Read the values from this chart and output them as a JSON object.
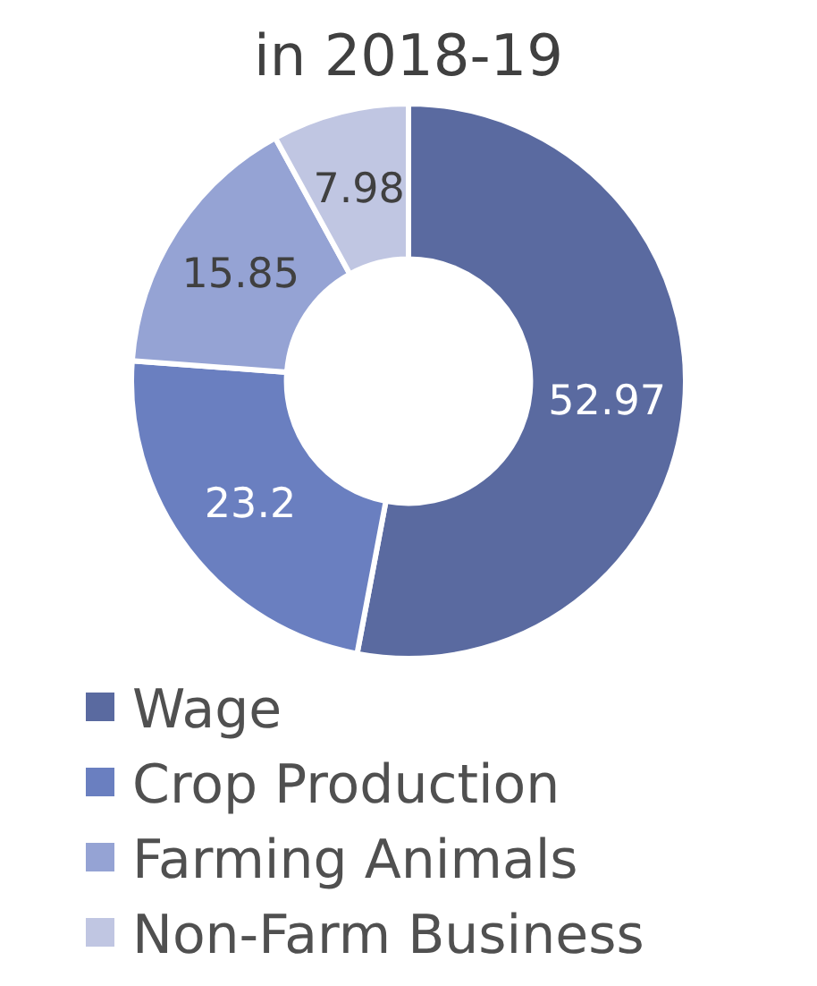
{
  "chart_data": {
    "type": "donut",
    "title": "in 2018-19",
    "categories": [
      "Wage",
      "Crop Production",
      "Farming Animals",
      "Non-Farm Business"
    ],
    "values": [
      52.97,
      23.2,
      15.85,
      7.98
    ],
    "colors": [
      "#5a6aa0",
      "#6a7fc0",
      "#95a3d4",
      "#c0c6e2"
    ],
    "data_labels": true,
    "legend": "bottom"
  }
}
